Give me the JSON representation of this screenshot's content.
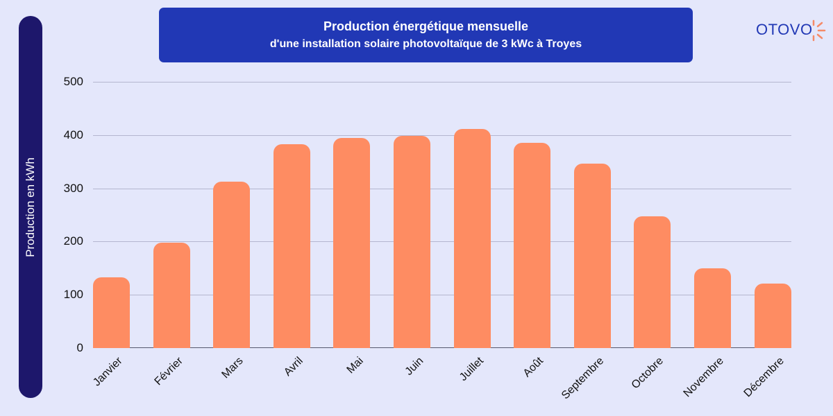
{
  "chart_data": {
    "type": "bar",
    "title": "Production énergétique mensuelle",
    "subtitle": "d'une installation solaire photovoltaïque de 3 kWc à Troyes",
    "xlabel": "",
    "ylabel": "Production en kWh",
    "ylim": [
      0,
      500
    ],
    "yticks": [
      0,
      100,
      200,
      300,
      400,
      500
    ],
    "grid": true,
    "legend": null,
    "categories": [
      "Janvier",
      "Février",
      "Mars",
      "Avril",
      "Mai",
      "Juin",
      "Juillet",
      "Août",
      "Septembre",
      "Octobre",
      "Novembre",
      "Décembre"
    ],
    "values": [
      133,
      198,
      313,
      383,
      395,
      399,
      412,
      385,
      347,
      248,
      150,
      121
    ],
    "bar_color": "#fe8c62"
  },
  "header": {
    "title": "Production énergétique mensuelle",
    "subtitle": "d'une installation solaire photovoltaïque de 3 kWc à Troyes"
  },
  "brand": {
    "logo_text": "OTOVO"
  },
  "yaxis": {
    "label": "Production en kWh"
  }
}
